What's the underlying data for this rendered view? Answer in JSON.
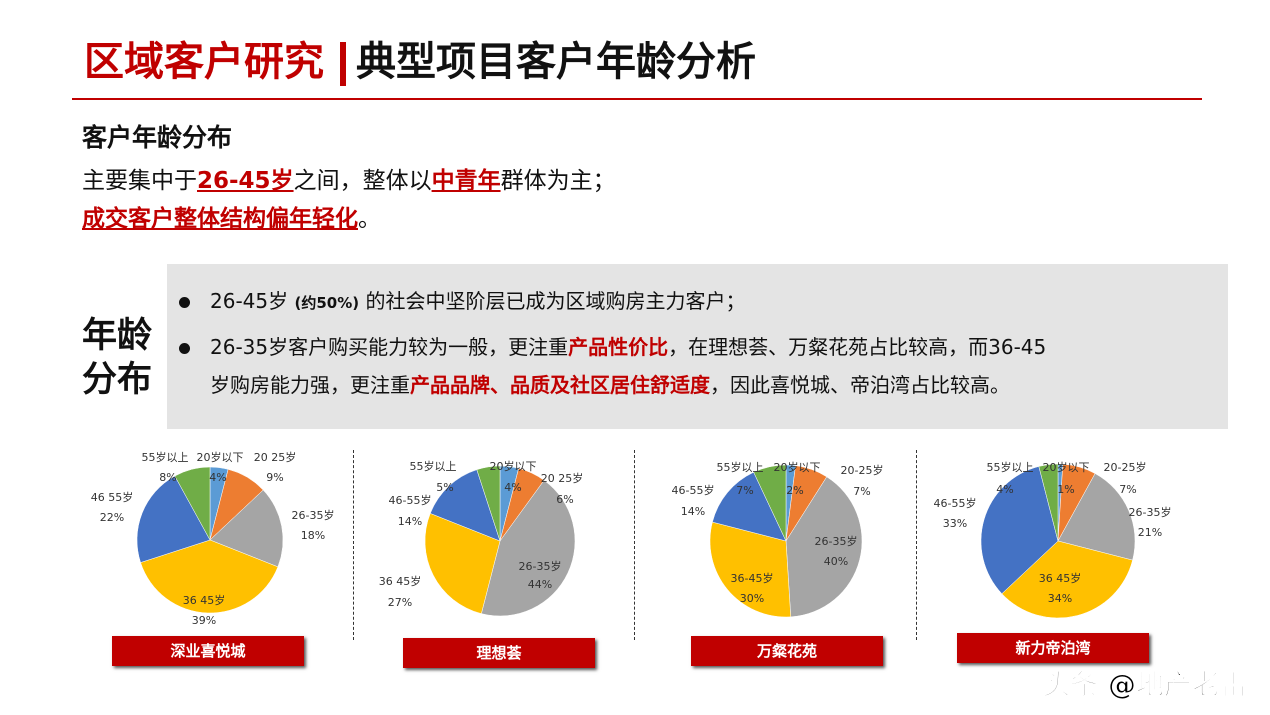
{
  "header": {
    "section": "区域客户研究",
    "title": "典型项目客户年龄分析"
  },
  "summary": {
    "subtitle": "客户年龄分布",
    "line1_a": "主要集中于",
    "line1_b": "26-45岁",
    "line1_c": "之间，整体以",
    "line1_d": "中青年",
    "line1_e": "群体为主；",
    "line2_a": "成交客户整体结构偏年轻化",
    "line2_b": "。"
  },
  "side_label": {
    "line1": "年龄",
    "line2": "分布"
  },
  "bullets": {
    "b1_a": "26-45岁 ",
    "b1_b": "(约50%)",
    "b1_c": " 的社会中坚阶层已成为区域购房主力客户；",
    "b2_a": "26-35岁客户购买能力较为一般，更注重",
    "b2_b": "产品性价比",
    "b2_c": "，在理想荟、万粲花苑占比较高，而36-45",
    "b3_a": "岁购房能力强，更注重",
    "b3_b": "产品品牌、品质及社区居住舒适度",
    "b3_c": "，因此喜悦城、帝泊湾占比较高。"
  },
  "colors": [
    "#5b9bd5",
    "#ed7d31",
    "#a5a5a5",
    "#ffc000",
    "#4472c4",
    "#70ad47"
  ],
  "chart_data": [
    {
      "type": "pie",
      "title": "深业喜悦城",
      "categories": [
        "20岁以下",
        "20 25岁",
        "26-35岁",
        "36 45岁",
        "46 55岁",
        "55岁以上"
      ],
      "values": [
        4,
        9,
        18,
        39,
        22,
        8
      ]
    },
    {
      "type": "pie",
      "title": "理想荟",
      "categories": [
        "20岁以下",
        "20 25岁",
        "26-35岁",
        "36 45岁",
        "46-55岁",
        "55岁以上"
      ],
      "values": [
        4,
        6,
        44,
        27,
        14,
        5
      ]
    },
    {
      "type": "pie",
      "title": "万粲花苑",
      "categories": [
        "20岁以下",
        "20-25岁",
        "26-35岁",
        "36-45岁",
        "46-55岁",
        "55岁以上"
      ],
      "values": [
        2,
        7,
        40,
        30,
        14,
        7
      ]
    },
    {
      "type": "pie",
      "title": "新力帝泊湾",
      "categories": [
        "20岁以下",
        "20-25岁",
        "26-35岁",
        "36 45岁",
        "46-55岁",
        "55岁以上"
      ],
      "values": [
        1,
        7,
        21,
        34,
        33,
        4
      ]
    }
  ],
  "watermark": "头条 @地产老雷"
}
